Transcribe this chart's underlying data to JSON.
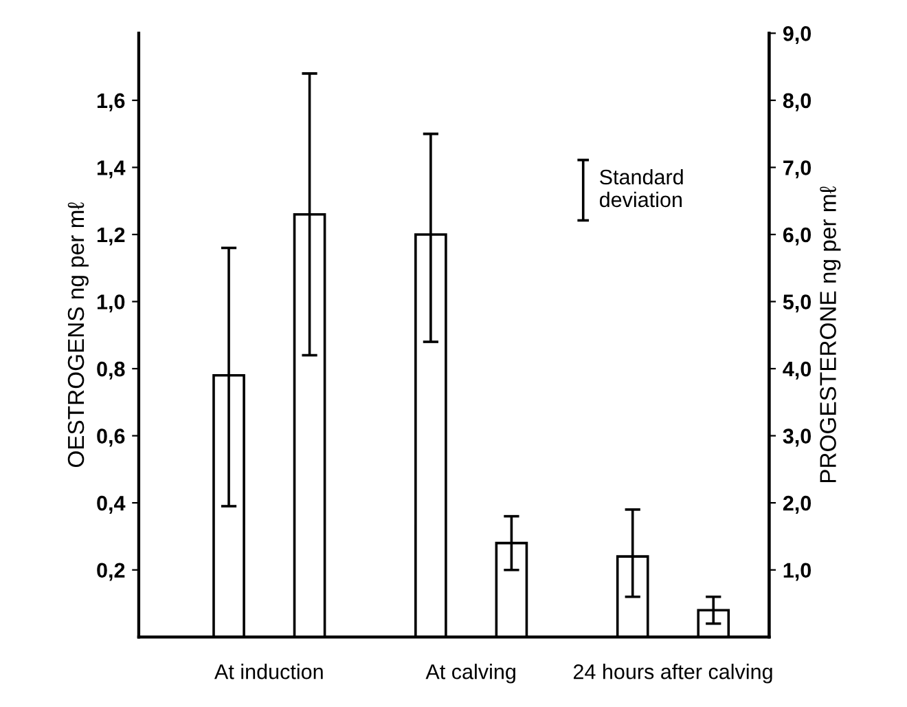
{
  "chart_data": {
    "type": "bar",
    "categories": [
      "At induction",
      "At calving",
      "24 hours after calving"
    ],
    "series": [
      {
        "color": "#ffffff",
        "values": [
          0.78,
          1.2,
          0.24
        ],
        "errors": [
          [
            0.39,
            1.16
          ],
          [
            0.88,
            1.5
          ],
          [
            0.12,
            0.38
          ]
        ]
      },
      {
        "color": "#ffffff",
        "axis": "y2",
        "values": [
          6.3,
          1.4,
          0.4
        ],
        "errors": [
          [
            4.2,
            8.4
          ],
          [
            1.0,
            1.8
          ],
          [
            0.2,
            0.6
          ]
        ]
      }
    ],
    "ylabel": "OESTROGENS ng per mℓ",
    "y2label": "PROGESTERONE ng per mℓ",
    "ylim": [
      0,
      1.8
    ],
    "yticks": [
      {
        "value": 0.2,
        "label": "0,2"
      },
      {
        "value": 0.4,
        "label": "0,4"
      },
      {
        "value": 0.6,
        "label": "0,6"
      },
      {
        "value": 0.8,
        "label": "0,8"
      },
      {
        "value": 1.0,
        "label": "1,0"
      },
      {
        "value": 1.2,
        "label": "1,2"
      },
      {
        "value": 1.4,
        "label": "1,4"
      },
      {
        "value": 1.6,
        "label": "1,6"
      }
    ],
    "y2lim": [
      0,
      9
    ],
    "y2ticks": [
      {
        "value": 1,
        "label": "1,0"
      },
      {
        "value": 2,
        "label": "2,0"
      },
      {
        "value": 3,
        "label": "3,0"
      },
      {
        "value": 4,
        "label": "4,0"
      },
      {
        "value": 5,
        "label": "5,0"
      },
      {
        "value": 6,
        "label": "6,0"
      },
      {
        "value": 7,
        "label": "7,0"
      },
      {
        "value": 8,
        "label": "8,0"
      },
      {
        "value": 9,
        "label": "9,0"
      }
    ],
    "annotations": [
      "Standard\ndeviation"
    ],
    "grid": false,
    "legend": false
  }
}
